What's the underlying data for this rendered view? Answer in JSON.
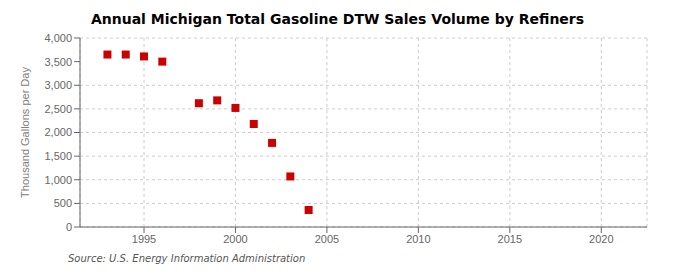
{
  "chart_data": {
    "type": "scatter",
    "title": "Annual Michigan Total Gasoline DTW Sales Volume by Refiners",
    "ylabel": "Thousand Gallons per Day",
    "source": "Source: U.S. Energy Information Administration",
    "x": [
      1993,
      1994,
      1995,
      1996,
      1998,
      1999,
      2000,
      2001,
      2002,
      2003,
      2004
    ],
    "values": [
      3650,
      3650,
      3610,
      3500,
      2620,
      2680,
      2520,
      2180,
      1780,
      1070,
      360
    ],
    "color": "#cc0000",
    "marker": "square",
    "xlim": [
      1991.5,
      2022.5
    ],
    "xticks": [
      1995,
      2000,
      2005,
      2010,
      2015,
      2020
    ],
    "ylim": [
      0,
      4000
    ],
    "yticks": [
      0,
      500,
      {
        "value": 1000,
        "label": "1,000"
      },
      {
        "value": 1500,
        "label": "1,500"
      },
      {
        "value": 2000,
        "label": "2,000"
      },
      {
        "value": 2500,
        "label": "2,500"
      },
      {
        "value": 3000,
        "label": "3,000"
      },
      {
        "value": 3500,
        "label": "3,500"
      },
      {
        "value": 4000,
        "label": "4,000"
      }
    ],
    "grid": true
  }
}
